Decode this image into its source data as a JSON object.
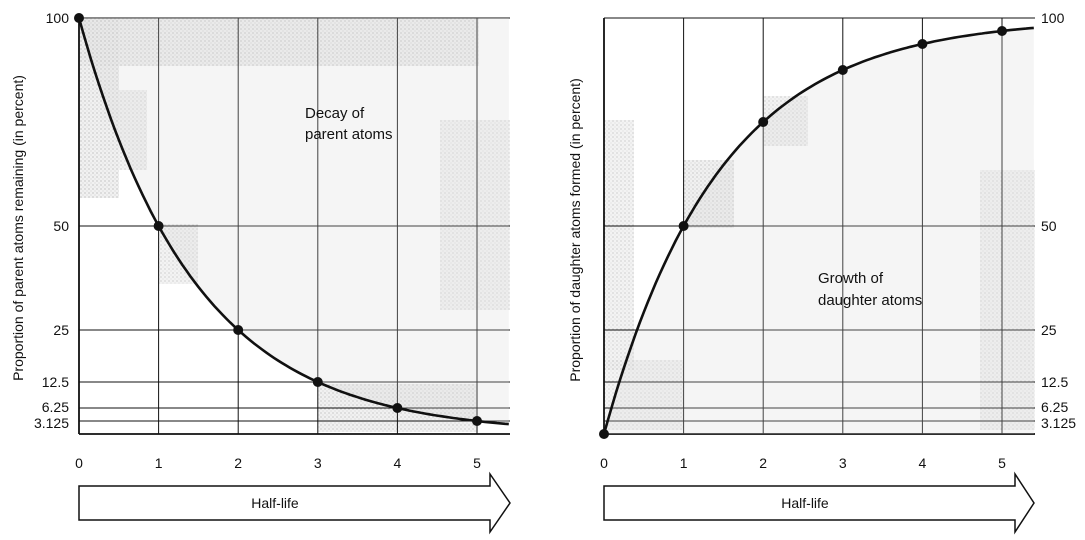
{
  "chart_data": [
    {
      "type": "line",
      "title": "",
      "annotation": [
        "Decay of",
        "parent atoms"
      ],
      "xlabel": "Half-life",
      "ylabel": "Proportion of parent atoms remaining (in percent)",
      "xlim": [
        0,
        5.4
      ],
      "ylim": [
        0,
        100
      ],
      "x_ticks": [
        "0",
        "1",
        "2",
        "3",
        "4",
        "5"
      ],
      "y_ticks": [
        {
          "value": 100,
          "label": "100"
        },
        {
          "value": 50,
          "label": "50"
        },
        {
          "value": 25,
          "label": "25"
        },
        {
          "value": 12.5,
          "label": "12.5"
        },
        {
          "value": 6.25,
          "label": "6.25"
        },
        {
          "value": 3.125,
          "label": "3.125"
        }
      ],
      "y_axis_side": "left",
      "grid": true,
      "x": [
        0,
        1,
        2,
        3,
        4,
        5
      ],
      "values": [
        100,
        50,
        25,
        12.5,
        6.25,
        3.125
      ]
    },
    {
      "type": "line",
      "title": "",
      "annotation": [
        "Growth of",
        "daughter atoms"
      ],
      "xlabel": "Half-life",
      "ylabel": "Proportion of daughter atoms formed (in percent)",
      "xlim": [
        0,
        5.4
      ],
      "ylim": [
        0,
        100
      ],
      "x_ticks": [
        "0",
        "1",
        "2",
        "3",
        "4",
        "5"
      ],
      "y_ticks": [
        {
          "value": 100,
          "label": "100"
        },
        {
          "value": 50,
          "label": "50"
        },
        {
          "value": 25,
          "label": "25"
        },
        {
          "value": 12.5,
          "label": "12.5"
        },
        {
          "value": 6.25,
          "label": "6.25"
        },
        {
          "value": 3.125,
          "label": "3.125"
        }
      ],
      "y_axis_side": "right",
      "grid": true,
      "x": [
        0,
        1,
        2,
        3,
        4,
        5
      ],
      "values": [
        0,
        50,
        75,
        87.5,
        93.75,
        96.875
      ]
    }
  ],
  "colors": {
    "line": "#111111",
    "grid": "#111111",
    "shade": "#d9d9d9"
  }
}
